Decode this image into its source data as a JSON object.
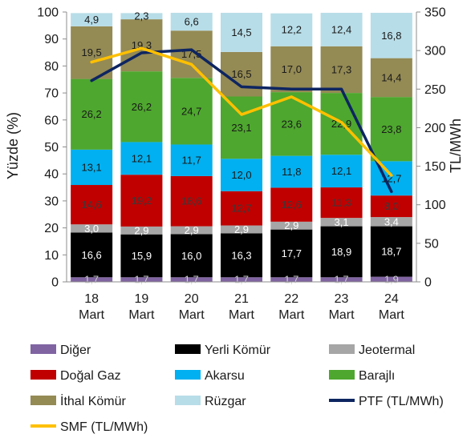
{
  "chart_data": {
    "type": "bar",
    "stacked": true,
    "categories": [
      "18 Mart",
      "19 Mart",
      "20 Mart",
      "21 Mart",
      "22 Mart",
      "23 Mart",
      "24 Mart"
    ],
    "category_lines": [
      [
        "18",
        "Mart"
      ],
      [
        "19",
        "Mart"
      ],
      [
        "20",
        "Mart"
      ],
      [
        "21",
        "Mart"
      ],
      [
        "22",
        "Mart"
      ],
      [
        "23",
        "Mart"
      ],
      [
        "24",
        "Mart"
      ]
    ],
    "ylabel": "Yüzde (%)",
    "y2label": "TL/MWh",
    "ylim": [
      0,
      100
    ],
    "y2lim": [
      0,
      350
    ],
    "y_ticks": [
      "0",
      "10",
      "20",
      "30",
      "40",
      "50",
      "60",
      "70",
      "80",
      "90",
      "100"
    ],
    "y2_ticks": [
      "0",
      "50",
      "100",
      "150",
      "200",
      "250",
      "300",
      "350"
    ],
    "grid": false,
    "legend_position": "bottom",
    "series": [
      {
        "name": "Diğer",
        "color": "#8064a2",
        "label_color": "#d0d0d0",
        "values": [
          1.7,
          1.7,
          1.7,
          1.7,
          1.7,
          1.7,
          1.9
        ],
        "labels": [
          "1,7",
          "1,7",
          "1,7",
          "1,7",
          "1,7",
          "1,7",
          "1,9"
        ]
      },
      {
        "name": "Yerli Kömür",
        "color": "#000000",
        "label_color": "#ffffff",
        "values": [
          16.6,
          15.9,
          16.0,
          16.3,
          17.7,
          18.9,
          18.7
        ],
        "labels": [
          "16,6",
          "15,9",
          "16,0",
          "16,3",
          "17,7",
          "18,9",
          "18,7"
        ]
      },
      {
        "name": "Jeotermal",
        "color": "#a6a6a6",
        "label_color": "#ffffff",
        "values": [
          3.0,
          2.9,
          2.9,
          2.9,
          2.9,
          3.1,
          3.4
        ],
        "labels": [
          "3,0",
          "2,9",
          "2,9",
          "2,9",
          "2,9",
          "3,1",
          "3,4"
        ]
      },
      {
        "name": "Doğal Gaz",
        "color": "#c00000",
        "label_color": "#3a3a3a",
        "values": [
          14.6,
          19.2,
          18.6,
          12.7,
          12.6,
          11.3,
          8.0
        ],
        "labels": [
          "14,6",
          "19,2",
          "18,6",
          "12,7",
          "12,6",
          "11,3",
          "8,0"
        ]
      },
      {
        "name": "Akarsu",
        "color": "#00b0f0",
        "label_color": "#1a1a1a",
        "values": [
          13.1,
          12.1,
          11.7,
          12.0,
          11.8,
          12.1,
          12.7
        ],
        "labels": [
          "13,1",
          "12,1",
          "11,7",
          "12,0",
          "11,8",
          "12,1",
          "12,7"
        ]
      },
      {
        "name": "Barajlı",
        "color": "#4ea72e",
        "label_color": "#1a1a1a",
        "values": [
          26.2,
          26.2,
          24.7,
          23.1,
          23.6,
          22.9,
          23.8
        ],
        "labels": [
          "26,2",
          "26,2",
          "24,7",
          "23,1",
          "23,6",
          "22,9",
          "23,8"
        ]
      },
      {
        "name": "İthal Kömür",
        "color": "#948a54",
        "label_color": "#1a1a1a",
        "values": [
          19.5,
          19.3,
          17.5,
          16.5,
          17.0,
          17.3,
          14.4
        ],
        "labels": [
          "19,5",
          "19,3",
          "17,5",
          "16,5",
          "17,0",
          "17,3",
          "14,4"
        ]
      },
      {
        "name": "Rüzgar",
        "color": "#b7dde8",
        "label_color": "#1a1a1a",
        "values": [
          4.9,
          2.3,
          6.6,
          14.5,
          12.2,
          12.4,
          16.8
        ],
        "labels": [
          "4,9",
          "2,3",
          "6,6",
          "14,5",
          "12,2",
          "12,4",
          "16,8"
        ]
      }
    ],
    "lines": [
      {
        "name": "PTF (TL/MWh)",
        "color": "#0d2561",
        "axis": "right",
        "values": [
          261,
          297,
          301,
          253,
          250,
          250,
          117
        ]
      },
      {
        "name": "SMF (TL/MWh)",
        "color": "#ffc000",
        "axis": "right",
        "values": [
          285,
          303,
          282,
          217,
          240,
          207,
          138
        ]
      }
    ],
    "legend": [
      {
        "name": "Diğer",
        "kind": "box",
        "color": "#8064a2"
      },
      {
        "name": "Yerli Kömür",
        "kind": "box",
        "color": "#000000"
      },
      {
        "name": "Jeotermal",
        "kind": "box",
        "color": "#a6a6a6"
      },
      {
        "name": "Doğal Gaz",
        "kind": "box",
        "color": "#c00000"
      },
      {
        "name": "Akarsu",
        "kind": "box",
        "color": "#00b0f0"
      },
      {
        "name": "Barajlı",
        "kind": "box",
        "color": "#4ea72e"
      },
      {
        "name": "İthal Kömür",
        "kind": "box",
        "color": "#948a54"
      },
      {
        "name": "Rüzgar",
        "kind": "box",
        "color": "#b7dde8"
      },
      {
        "name": "PTF (TL/MWh)",
        "kind": "line",
        "color": "#0d2561"
      },
      {
        "name": "SMF (TL/MWh)",
        "kind": "line",
        "color": "#ffc000"
      }
    ]
  }
}
